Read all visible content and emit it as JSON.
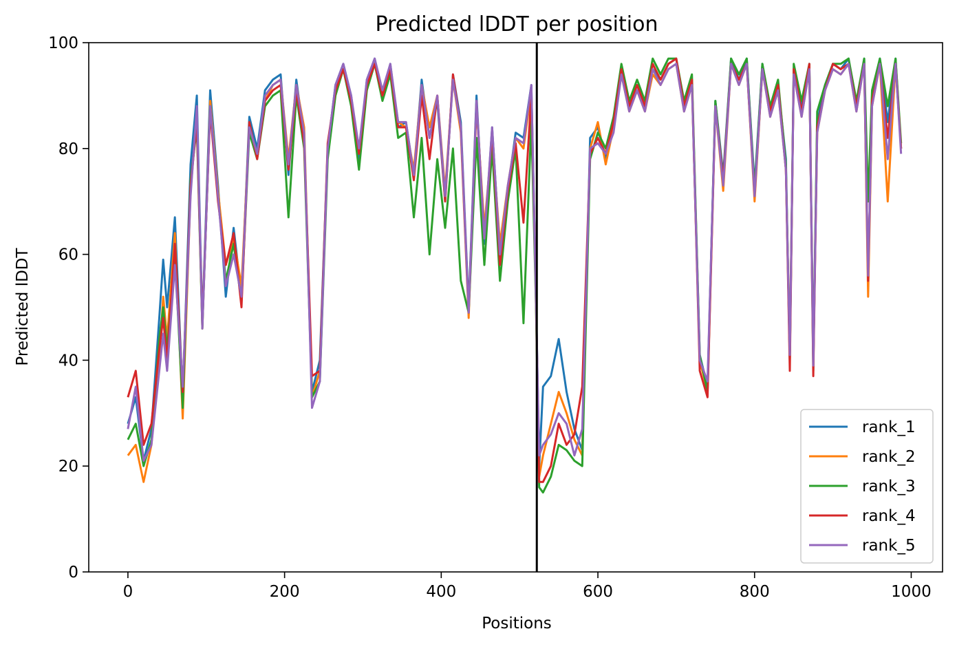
{
  "chart_data": {
    "type": "line",
    "title": "Predicted lDDT per position",
    "xlabel": "Positions",
    "ylabel": "Predicted lDDT",
    "xlim": [
      -50,
      1040
    ],
    "ylim": [
      0,
      100
    ],
    "xticks": [
      "0",
      "200",
      "400",
      "600",
      "800",
      "1000"
    ],
    "yticks": [
      "0",
      "20",
      "40",
      "60",
      "80",
      "100"
    ],
    "grid": false,
    "legend_position": "lower right",
    "chain_break_x": 522,
    "series": [
      {
        "name": "rank_1",
        "color": "#1f77b4",
        "x": [
          0,
          10,
          20,
          30,
          40,
          45,
          50,
          60,
          70,
          80,
          88,
          95,
          105,
          115,
          125,
          135,
          145,
          155,
          165,
          175,
          185,
          195,
          205,
          215,
          225,
          235,
          245,
          255,
          265,
          275,
          285,
          295,
          305,
          315,
          325,
          335,
          345,
          355,
          365,
          375,
          385,
          395,
          405,
          415,
          425,
          435,
          445,
          455,
          465,
          475,
          485,
          495,
          505,
          515,
          521,
          525,
          530,
          540,
          550,
          560,
          570,
          580,
          590,
          600,
          610,
          620,
          630,
          640,
          650,
          660,
          670,
          680,
          690,
          700,
          710,
          720,
          730,
          740,
          750,
          760,
          770,
          780,
          790,
          800,
          810,
          820,
          830,
          840,
          845,
          850,
          860,
          870,
          875,
          880,
          890,
          900,
          910,
          920,
          930,
          940,
          945,
          950,
          960,
          970,
          980,
          987
        ],
        "values": [
          28,
          33,
          21,
          27,
          48,
          59,
          50,
          67,
          33,
          77,
          90,
          47,
          91,
          73,
          52,
          65,
          52,
          86,
          80,
          91,
          93,
          94,
          75,
          93,
          82,
          34,
          40,
          80,
          92,
          96,
          90,
          78,
          93,
          97,
          90,
          96,
          84,
          85,
          75,
          93,
          82,
          89,
          70,
          94,
          85,
          50,
          90,
          62,
          84,
          60,
          72,
          83,
          82,
          92,
          52,
          20,
          35,
          37,
          44,
          34,
          27,
          23,
          82,
          84,
          78,
          85,
          95,
          88,
          92,
          88,
          95,
          93,
          96,
          97,
          88,
          93,
          41,
          35,
          89,
          75,
          97,
          93,
          97,
          73,
          96,
          87,
          92,
          78,
          40,
          95,
          88,
          96,
          41,
          85,
          92,
          96,
          95,
          97,
          88,
          97,
          54,
          90,
          97,
          85,
          97,
          80
        ]
      },
      {
        "name": "rank_2",
        "color": "#ff7f0e",
        "x": [
          0,
          10,
          20,
          30,
          40,
          45,
          50,
          60,
          70,
          80,
          88,
          95,
          105,
          115,
          125,
          135,
          145,
          155,
          165,
          175,
          185,
          195,
          205,
          215,
          225,
          235,
          245,
          255,
          265,
          275,
          285,
          295,
          305,
          315,
          325,
          335,
          345,
          355,
          365,
          375,
          385,
          395,
          405,
          415,
          425,
          435,
          445,
          455,
          465,
          475,
          485,
          495,
          505,
          515,
          521,
          525,
          530,
          540,
          550,
          560,
          570,
          580,
          590,
          600,
          610,
          620,
          630,
          640,
          650,
          660,
          670,
          680,
          690,
          700,
          710,
          720,
          730,
          740,
          750,
          760,
          770,
          780,
          790,
          800,
          810,
          820,
          830,
          840,
          845,
          850,
          860,
          870,
          875,
          880,
          890,
          900,
          910,
          920,
          930,
          940,
          945,
          950,
          960,
          970,
          980,
          987
        ],
        "values": [
          22,
          24,
          17,
          24,
          40,
          52,
          44,
          64,
          29,
          72,
          86,
          46,
          89,
          72,
          58,
          63,
          54,
          84,
          79,
          89,
          92,
          93,
          78,
          92,
          84,
          33,
          38,
          79,
          91,
          95,
          89,
          80,
          92,
          96,
          91,
          95,
          85,
          84,
          76,
          92,
          84,
          90,
          72,
          93,
          83,
          48,
          88,
          65,
          82,
          62,
          73,
          82,
          80,
          91,
          50,
          18,
          22,
          28,
          34,
          30,
          25,
          22,
          80,
          85,
          77,
          84,
          94,
          87,
          91,
          87,
          94,
          92,
          95,
          96,
          87,
          92,
          40,
          34,
          88,
          72,
          96,
          92,
          96,
          70,
          95,
          86,
          91,
          76,
          42,
          94,
          86,
          95,
          40,
          83,
          91,
          95,
          94,
          96,
          87,
          96,
          52,
          88,
          96,
          70,
          96,
          80
        ]
      },
      {
        "name": "rank_3",
        "color": "#2ca02c",
        "x": [
          0,
          10,
          20,
          30,
          40,
          45,
          50,
          60,
          70,
          80,
          88,
          95,
          105,
          115,
          125,
          135,
          145,
          155,
          165,
          175,
          185,
          195,
          205,
          215,
          225,
          235,
          245,
          255,
          265,
          275,
          285,
          295,
          305,
          315,
          325,
          335,
          345,
          355,
          365,
          375,
          385,
          395,
          405,
          415,
          425,
          435,
          445,
          455,
          465,
          475,
          485,
          495,
          505,
          515,
          521,
          525,
          530,
          540,
          550,
          560,
          570,
          580,
          590,
          600,
          610,
          620,
          630,
          640,
          650,
          660,
          670,
          680,
          690,
          700,
          710,
          720,
          730,
          740,
          750,
          760,
          770,
          780,
          790,
          800,
          810,
          820,
          830,
          840,
          845,
          850,
          860,
          870,
          875,
          880,
          890,
          900,
          910,
          920,
          930,
          940,
          945,
          950,
          960,
          970,
          980,
          987
        ],
        "values": [
          25,
          28,
          20,
          25,
          44,
          50,
          42,
          60,
          31,
          74,
          84,
          46,
          88,
          71,
          55,
          62,
          51,
          83,
          78,
          88,
          90,
          91,
          67,
          90,
          80,
          33,
          36,
          78,
          90,
          95,
          88,
          76,
          91,
          96,
          89,
          94,
          82,
          83,
          67,
          82,
          60,
          78,
          65,
          80,
          55,
          49,
          82,
          58,
          80,
          55,
          70,
          80,
          47,
          85,
          50,
          16,
          15,
          18,
          24,
          23,
          21,
          20,
          78,
          83,
          80,
          86,
          96,
          89,
          93,
          89,
          97,
          94,
          97,
          97,
          89,
          94,
          41,
          34,
          89,
          74,
          97,
          94,
          97,
          72,
          96,
          88,
          93,
          77,
          40,
          96,
          89,
          96,
          38,
          87,
          92,
          96,
          96,
          97,
          89,
          97,
          70,
          91,
          97,
          88,
          97,
          81
        ]
      },
      {
        "name": "rank_4",
        "color": "#d62728",
        "x": [
          0,
          10,
          20,
          30,
          40,
          45,
          50,
          60,
          70,
          80,
          88,
          95,
          105,
          115,
          125,
          135,
          145,
          155,
          165,
          175,
          185,
          195,
          205,
          215,
          225,
          235,
          245,
          255,
          265,
          275,
          285,
          295,
          305,
          315,
          325,
          335,
          345,
          355,
          365,
          375,
          385,
          395,
          405,
          415,
          425,
          435,
          445,
          455,
          465,
          475,
          485,
          495,
          505,
          515,
          521,
          525,
          530,
          540,
          550,
          560,
          570,
          580,
          590,
          600,
          610,
          620,
          630,
          640,
          650,
          660,
          670,
          680,
          690,
          700,
          710,
          720,
          730,
          740,
          750,
          760,
          770,
          780,
          790,
          800,
          810,
          820,
          830,
          840,
          845,
          850,
          860,
          870,
          875,
          880,
          890,
          900,
          910,
          920,
          930,
          940,
          945,
          950,
          960,
          970,
          980,
          987
        ],
        "values": [
          33,
          38,
          24,
          28,
          42,
          48,
          40,
          62,
          34,
          73,
          85,
          47,
          87,
          70,
          58,
          64,
          50,
          85,
          78,
          89,
          91,
          92,
          76,
          91,
          81,
          37,
          38,
          81,
          91,
          95,
          89,
          79,
          92,
          96,
          90,
          95,
          84,
          84,
          74,
          90,
          78,
          90,
          70,
          94,
          84,
          49,
          89,
          63,
          83,
          58,
          72,
          81,
          66,
          90,
          52,
          17,
          17,
          20,
          28,
          24,
          26,
          35,
          79,
          82,
          79,
          85,
          95,
          88,
          92,
          88,
          96,
          93,
          96,
          97,
          88,
          93,
          38,
          33,
          88,
          74,
          96,
          93,
          96,
          71,
          95,
          87,
          92,
          76,
          38,
          95,
          87,
          96,
          37,
          84,
          91,
          96,
          95,
          96,
          88,
          96,
          55,
          89,
          96,
          82,
          96,
          80
        ]
      },
      {
        "name": "rank_5",
        "color": "#9467bd",
        "x": [
          0,
          10,
          20,
          30,
          40,
          45,
          50,
          60,
          70,
          80,
          88,
          95,
          105,
          115,
          125,
          135,
          145,
          155,
          165,
          175,
          185,
          195,
          205,
          215,
          225,
          235,
          245,
          255,
          265,
          275,
          285,
          295,
          305,
          315,
          325,
          335,
          345,
          355,
          365,
          375,
          385,
          395,
          405,
          415,
          425,
          435,
          445,
          455,
          465,
          475,
          485,
          495,
          505,
          515,
          521,
          525,
          530,
          540,
          550,
          560,
          570,
          580,
          590,
          600,
          610,
          620,
          630,
          640,
          650,
          660,
          670,
          680,
          690,
          700,
          710,
          720,
          730,
          740,
          750,
          760,
          770,
          780,
          790,
          800,
          810,
          820,
          830,
          840,
          845,
          850,
          860,
          870,
          875,
          880,
          890,
          900,
          910,
          920,
          930,
          940,
          945,
          950,
          960,
          970,
          980,
          987
        ],
        "values": [
          27,
          35,
          21,
          24,
          38,
          45,
          38,
          58,
          35,
          71,
          88,
          46,
          88,
          71,
          54,
          60,
          52,
          84,
          79,
          90,
          92,
          93,
          77,
          92,
          83,
          31,
          36,
          80,
          92,
          96,
          90,
          80,
          93,
          97,
          91,
          96,
          85,
          85,
          75,
          92,
          82,
          90,
          71,
          93,
          84,
          49,
          89,
          63,
          84,
          60,
          73,
          82,
          81,
          92,
          51,
          22,
          24,
          26,
          30,
          28,
          22,
          27,
          80,
          81,
          79,
          83,
          94,
          87,
          91,
          87,
          95,
          92,
          95,
          96,
          87,
          92,
          40,
          36,
          88,
          73,
          96,
          92,
          96,
          71,
          95,
          86,
          91,
          76,
          41,
          94,
          86,
          95,
          39,
          83,
          91,
          95,
          94,
          96,
          87,
          96,
          56,
          88,
          96,
          78,
          96,
          79
        ]
      }
    ]
  }
}
